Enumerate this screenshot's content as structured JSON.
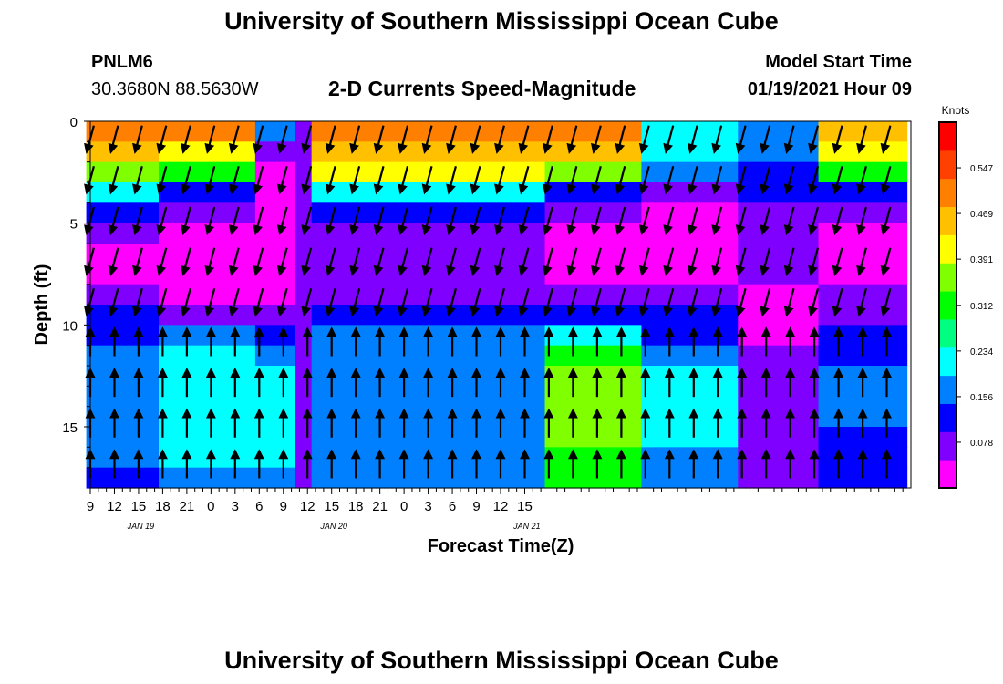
{
  "header": {
    "title_top": "University of Southern Mississippi Ocean Cube",
    "title_bottom": "University of Southern Mississippi Ocean Cube",
    "station_id": "PNLM6",
    "station_coords": "30.3680N 88.5630W",
    "plot_title": "2-D Currents Speed-Magnitude",
    "model_start_label": "Model Start Time",
    "model_start_value": "01/19/2021 Hour 09"
  },
  "chart_data": {
    "type": "heatmap",
    "title": "2-D Currents Speed-Magnitude",
    "xlabel": "Forecast Time(Z)",
    "ylabel": "Depth (ft)",
    "x_hours": [
      9,
      10,
      11,
      12,
      13,
      14,
      15,
      16,
      17,
      18,
      19,
      20,
      21,
      22,
      23,
      24,
      25,
      26,
      27,
      28,
      29,
      30,
      31,
      32,
      33,
      34,
      35,
      36,
      37,
      38,
      39,
      40,
      41,
      42,
      43,
      44,
      45,
      46,
      47,
      48,
      49,
      50,
      51,
      52,
      53,
      54,
      55,
      56,
      57,
      58,
      59,
      60,
      61,
      62,
      63,
      64,
      65,
      66,
      67,
      68,
      69,
      70,
      71,
      72,
      73,
      74,
      75,
      76,
      77,
      78,
      79,
      80,
      81,
      82,
      83,
      84,
      85,
      86,
      87,
      88,
      89,
      90,
      91,
      92,
      93,
      94,
      95,
      96,
      97,
      98,
      99,
      100,
      101,
      102,
      103,
      104,
      105,
      106,
      107,
      108,
      109,
      110
    ],
    "depth_ft": [
      0.5,
      1.5,
      2.5,
      3.5,
      4.5,
      5.5,
      6.5,
      7.5,
      8.5,
      9.5,
      10.5,
      11.5,
      12.5,
      13.5,
      14.5,
      15.5,
      16.5,
      17.5
    ],
    "x_ticks": [
      "9",
      "12",
      "15",
      "18",
      "21",
      "0",
      "3",
      "6",
      "9",
      "12",
      "15",
      "18",
      "21",
      "0",
      "3",
      "6",
      "9",
      "12",
      "15"
    ],
    "y_ticks": [
      "0",
      "5",
      "10",
      "15"
    ],
    "date_labels": [
      "JAN 19",
      "JAN 20",
      "JAN 21"
    ],
    "ylim": [
      0,
      18
    ],
    "y_inverted": true,
    "colorbar": {
      "label": "Knots",
      "ticks": [
        "0.547",
        "0.469",
        "0.391",
        "0.312",
        "0.234",
        "0.156",
        "0.078"
      ],
      "range": [
        0,
        0.625
      ],
      "colors": [
        "#ff00ff",
        "#8000ff",
        "#0000ff",
        "#0080ff",
        "#00ffff",
        "#00ff80",
        "#00ff00",
        "#80ff00",
        "#ffff00",
        "#ffc000",
        "#ff8000",
        "#ff4000",
        "#ff0000"
      ]
    },
    "speed_profiles": {
      "A": [
        0.52,
        0.44,
        0.36,
        0.2,
        0.1,
        0.06,
        0.04,
        0.03,
        0.06,
        0.1,
        0.14,
        0.16,
        0.17,
        0.17,
        0.17,
        0.16,
        0.15,
        0.14
      ],
      "B": [
        0.5,
        0.42,
        0.3,
        0.14,
        0.05,
        0.02,
        0.01,
        0.01,
        0.04,
        0.09,
        0.15,
        0.2,
        0.22,
        0.23,
        0.23,
        0.22,
        0.2,
        0.18
      ],
      "C": [
        0.18,
        0.09,
        0.04,
        0.02,
        0.01,
        0.01,
        0.01,
        0.01,
        0.03,
        0.08,
        0.14,
        0.19,
        0.22,
        0.24,
        0.24,
        0.23,
        0.21,
        0.19
      ],
      "D": [
        0.08,
        0.06,
        0.05,
        0.05,
        0.05,
        0.05,
        0.05,
        0.05,
        0.06,
        0.06,
        0.06,
        0.06,
        0.06,
        0.06,
        0.06,
        0.06,
        0.06,
        0.06
      ],
      "E": [
        0.5,
        0.48,
        0.4,
        0.24,
        0.12,
        0.06,
        0.05,
        0.05,
        0.07,
        0.11,
        0.15,
        0.18,
        0.19,
        0.19,
        0.19,
        0.18,
        0.17,
        0.16
      ],
      "F": [
        0.5,
        0.46,
        0.38,
        0.14,
        0.06,
        0.03,
        0.03,
        0.04,
        0.08,
        0.14,
        0.22,
        0.3,
        0.34,
        0.36,
        0.36,
        0.35,
        0.33,
        0.3
      ],
      "G": [
        0.24,
        0.22,
        0.16,
        0.06,
        0.03,
        0.02,
        0.02,
        0.03,
        0.06,
        0.1,
        0.14,
        0.18,
        0.2,
        0.21,
        0.21,
        0.2,
        0.19,
        0.17
      ],
      "H": [
        0.16,
        0.18,
        0.14,
        0.1,
        0.08,
        0.06,
        0.05,
        0.05,
        0.04,
        0.03,
        0.04,
        0.05,
        0.05,
        0.05,
        0.05,
        0.05,
        0.05,
        0.05
      ],
      "I": [
        0.48,
        0.4,
        0.3,
        0.14,
        0.06,
        0.03,
        0.02,
        0.03,
        0.05,
        0.08,
        0.12,
        0.14,
        0.15,
        0.15,
        0.15,
        0.14,
        0.13,
        0.12
      ]
    },
    "profile_by_column": "AAAAAAAAABBBBBBBBBBBBCCCCCDDEEEEEEEEEEEEEEEEEEEEEEEEEEEEEFFFFFFFFFFFFGGGGGGGGGGGGHHHHHHHHHHIIIIIIIIIIII",
    "vector_x_hours": [
      9,
      12,
      15,
      18,
      21,
      24,
      27,
      30,
      33,
      36,
      39,
      42,
      45,
      48,
      51,
      54,
      57,
      60,
      63,
      66,
      69,
      72,
      75,
      78,
      81,
      84,
      87,
      90,
      93,
      96,
      99,
      102,
      105,
      108
    ],
    "vector_depth_ft": [
      0.5,
      2.5,
      4.5,
      6.5,
      8.5,
      10.5,
      12.5,
      14.5,
      16.5
    ],
    "vector_directions_deg": {
      "upper": 195,
      "lower": 0
    }
  }
}
